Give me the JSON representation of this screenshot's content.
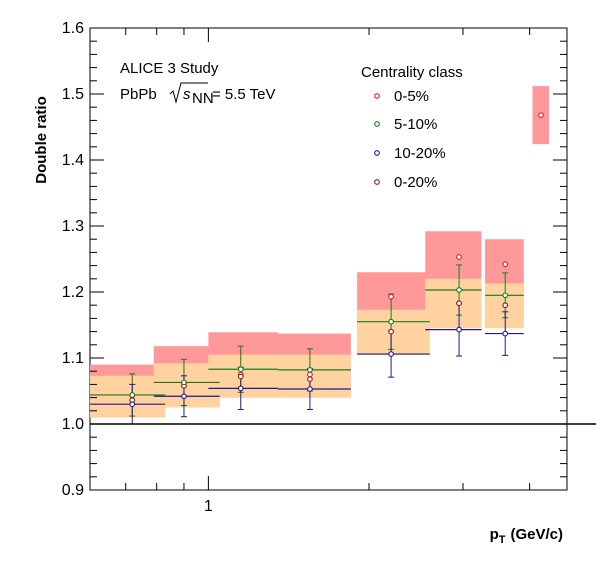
{
  "chart_data": {
    "type": "scatter",
    "title": "",
    "xlabel": "p_T (GeV/c)",
    "xlabel_main": "p",
    "xlabel_sub": "T",
    "xlabel_unit": "(GeV/c)",
    "ylabel": "Double ratio",
    "xscale": "log",
    "xlim": [
      0.6,
      4.7
    ],
    "ylim": [
      0.9,
      1.6
    ],
    "y_ticks": [
      "0.9",
      "1.0",
      "1.1",
      "1.2",
      "1.3",
      "1.4",
      "1.5",
      "1.6"
    ],
    "x_tick_labels": [
      {
        "value": 1,
        "label": "1"
      }
    ],
    "reference_line": 1.0,
    "grid": false,
    "legend_title": "Centrality class",
    "legend_position": "top-right",
    "annotations": {
      "experiment": "ALICE 3 Study",
      "system": "PbPb",
      "energy_sqrt": "s",
      "energy_sub": "NN",
      "energy_value": "= 5.5 TeV"
    },
    "colors": {
      "0-5%": "#e41a1c",
      "5-10%": "#1a7a1a",
      "10-20%": "#1a1a8c",
      "0-20%": "#8b1a1a",
      "band_0-5%": "#ff9999",
      "band_0-20%": "#ffd2a0"
    },
    "series": [
      {
        "name": "0-5%",
        "color": "#e41a1c",
        "x": [
          0.72,
          0.9,
          1.15,
          1.55,
          2.2,
          2.95,
          3.6,
          4.2
        ],
        "y": [
          1.043,
          1.062,
          1.075,
          1.075,
          1.193,
          1.253,
          1.242,
          1.468
        ],
        "xerr_low": [
          0.12,
          0.11,
          0.15,
          0.2,
          0.3,
          0.4,
          0.3,
          0.15
        ],
        "xerr_high": [
          0.11,
          0.15,
          0.2,
          0.3,
          0.4,
          0.3,
          0.3,
          0.15
        ],
        "sys_low": [
          1.01,
          1.025,
          1.04,
          1.04,
          1.145,
          1.18,
          1.16,
          1.424
        ],
        "sys_high": [
          1.09,
          1.118,
          1.139,
          1.137,
          1.23,
          1.292,
          1.28,
          1.512
        ]
      },
      {
        "name": "5-10%",
        "color": "#1a7a1a",
        "x": [
          0.72,
          0.9,
          1.15,
          1.55,
          2.2,
          2.95,
          3.6
        ],
        "y": [
          1.044,
          1.063,
          1.083,
          1.082,
          1.155,
          1.203,
          1.195
        ],
        "xerr_low": [
          0.12,
          0.11,
          0.15,
          0.2,
          0.3,
          0.4,
          0.3
        ],
        "xerr_high": [
          0.11,
          0.15,
          0.2,
          0.3,
          0.4,
          0.3,
          0.3
        ],
        "yerr": [
          0.032,
          0.035,
          0.035,
          0.032,
          0.042,
          0.038,
          0.034
        ]
      },
      {
        "name": "10-20%",
        "color": "#1a1a8c",
        "x": [
          0.72,
          0.9,
          1.15,
          1.55,
          2.2,
          2.95,
          3.6
        ],
        "y": [
          1.03,
          1.042,
          1.054,
          1.053,
          1.106,
          1.143,
          1.137
        ],
        "xerr_low": [
          0.12,
          0.11,
          0.15,
          0.2,
          0.3,
          0.4,
          0.3
        ],
        "xerr_high": [
          0.11,
          0.15,
          0.2,
          0.3,
          0.4,
          0.3,
          0.3
        ],
        "yerr": [
          0.03,
          0.031,
          0.032,
          0.031,
          0.035,
          0.04,
          0.033
        ]
      },
      {
        "name": "0-20%",
        "color": "#8b1a1a",
        "x": [
          0.72,
          0.9,
          1.15,
          1.55,
          2.2,
          2.95,
          3.6
        ],
        "y": [
          1.036,
          1.058,
          1.072,
          1.068,
          1.14,
          1.183,
          1.18
        ],
        "sys_low": [
          1.01,
          1.025,
          1.04,
          1.04,
          1.105,
          1.145,
          1.145
        ],
        "sys_high": [
          1.073,
          1.092,
          1.105,
          1.105,
          1.173,
          1.22,
          1.213
        ]
      }
    ]
  }
}
